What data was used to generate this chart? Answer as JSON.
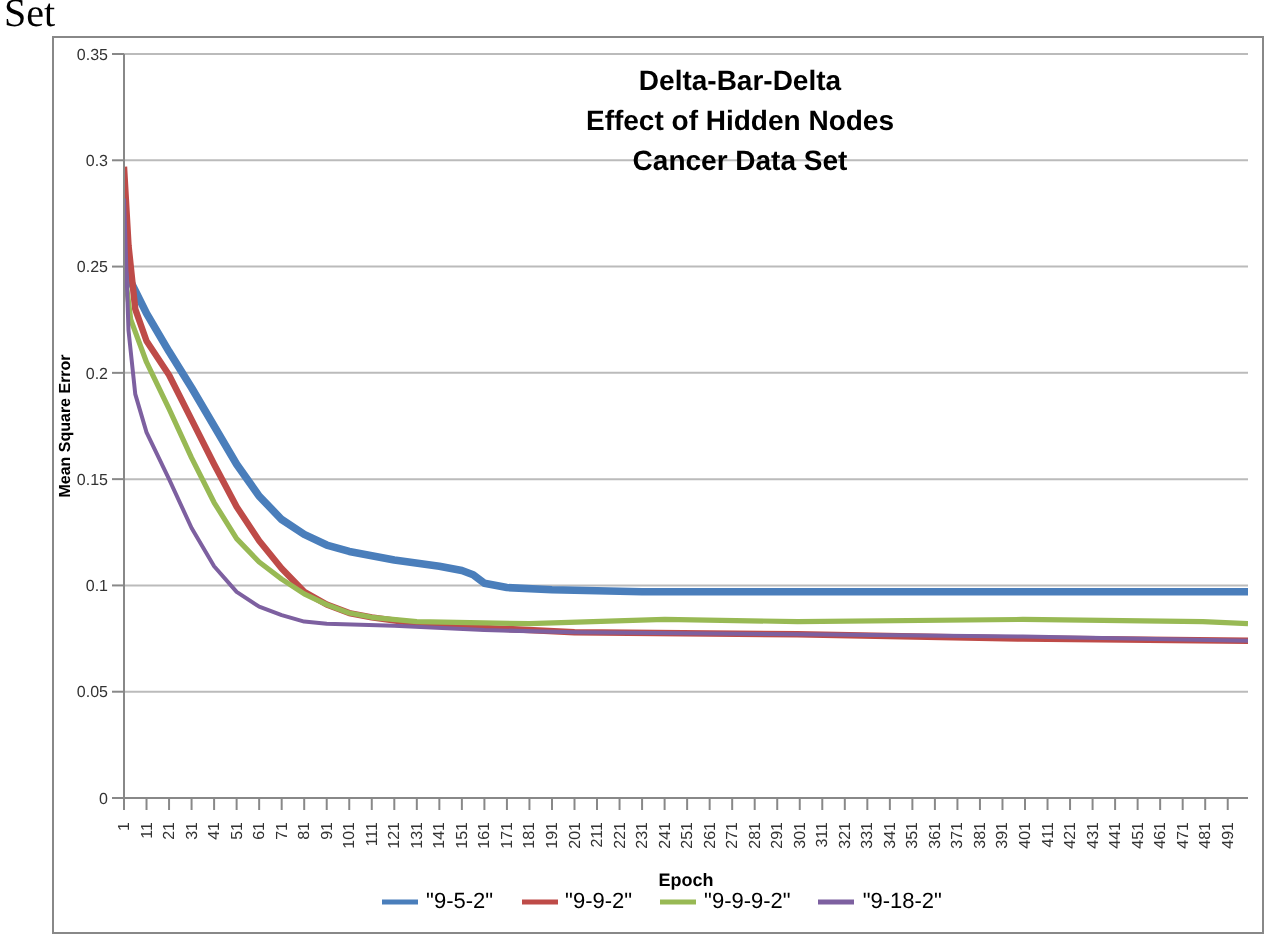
{
  "chart_data": {
    "type": "line",
    "title": "Delta-Bar-Delta\nEffect of Hidden Nodes\nCancer Data Set",
    "xlabel": "Epoch",
    "ylabel": "Mean Square Error",
    "annotations": [
      "Set"
    ],
    "xlim": [
      1,
      500
    ],
    "xticks": [
      1,
      11,
      21,
      31,
      41,
      51,
      61,
      71,
      81,
      91,
      101,
      111,
      121,
      131,
      141,
      151,
      161,
      171,
      181,
      191,
      201,
      211,
      221,
      231,
      241,
      251,
      261,
      271,
      281,
      291,
      301,
      311,
      321,
      331,
      341,
      351,
      361,
      371,
      381,
      391,
      401,
      411,
      421,
      431,
      441,
      451,
      461,
      471,
      481,
      491
    ],
    "ylim": [
      0,
      0.35
    ],
    "yticks": [
      0,
      0.05,
      0.1,
      0.15,
      0.2,
      0.25,
      0.3,
      0.35
    ],
    "grid": "y",
    "legend": "bottom",
    "marker": "none",
    "line_style": "solid",
    "series": [
      {
        "name": "\"9-5-2\"",
        "color": "#4a7ebb",
        "x": [
          1,
          3,
          11,
          21,
          31,
          41,
          51,
          61,
          71,
          81,
          91,
          101,
          121,
          141,
          151,
          156,
          161,
          171,
          191,
          231,
          500
        ],
        "values": [
          0.28,
          0.245,
          0.228,
          0.21,
          0.193,
          0.175,
          0.157,
          0.142,
          0.131,
          0.124,
          0.119,
          0.116,
          0.112,
          0.109,
          0.107,
          0.105,
          0.101,
          0.099,
          0.098,
          0.097,
          0.097
        ]
      },
      {
        "name": "\"9-9-2\"",
        "color": "#be4b48",
        "x": [
          1,
          3,
          6,
          11,
          21,
          31,
          41,
          51,
          61,
          71,
          81,
          91,
          101,
          111,
          131,
          161,
          201,
          300,
          400,
          500
        ],
        "values": [
          0.297,
          0.26,
          0.23,
          0.215,
          0.199,
          0.178,
          0.157,
          0.137,
          0.121,
          0.108,
          0.097,
          0.091,
          0.087,
          0.085,
          0.082,
          0.08,
          0.078,
          0.077,
          0.075,
          0.074
        ]
      },
      {
        "name": "\"9-9-9-2\"",
        "color": "#98b954",
        "x": [
          1,
          4,
          11,
          21,
          31,
          41,
          51,
          61,
          71,
          81,
          91,
          101,
          111,
          131,
          181,
          241,
          300,
          400,
          480,
          500
        ],
        "values": [
          0.25,
          0.225,
          0.205,
          0.183,
          0.16,
          0.139,
          0.122,
          0.111,
          0.103,
          0.096,
          0.091,
          0.087,
          0.085,
          0.083,
          0.082,
          0.084,
          0.083,
          0.084,
          0.083,
          0.082
        ]
      },
      {
        "name": "\"9-18-2\"",
        "color": "#7d60a0",
        "x": [
          1,
          3,
          6,
          11,
          21,
          31,
          41,
          51,
          61,
          71,
          81,
          91,
          121,
          161,
          201,
          300,
          400,
          500
        ],
        "values": [
          0.282,
          0.22,
          0.19,
          0.172,
          0.15,
          0.127,
          0.109,
          0.097,
          0.09,
          0.086,
          0.083,
          0.082,
          0.081,
          0.079,
          0.078,
          0.077,
          0.076,
          0.074
        ]
      }
    ]
  }
}
